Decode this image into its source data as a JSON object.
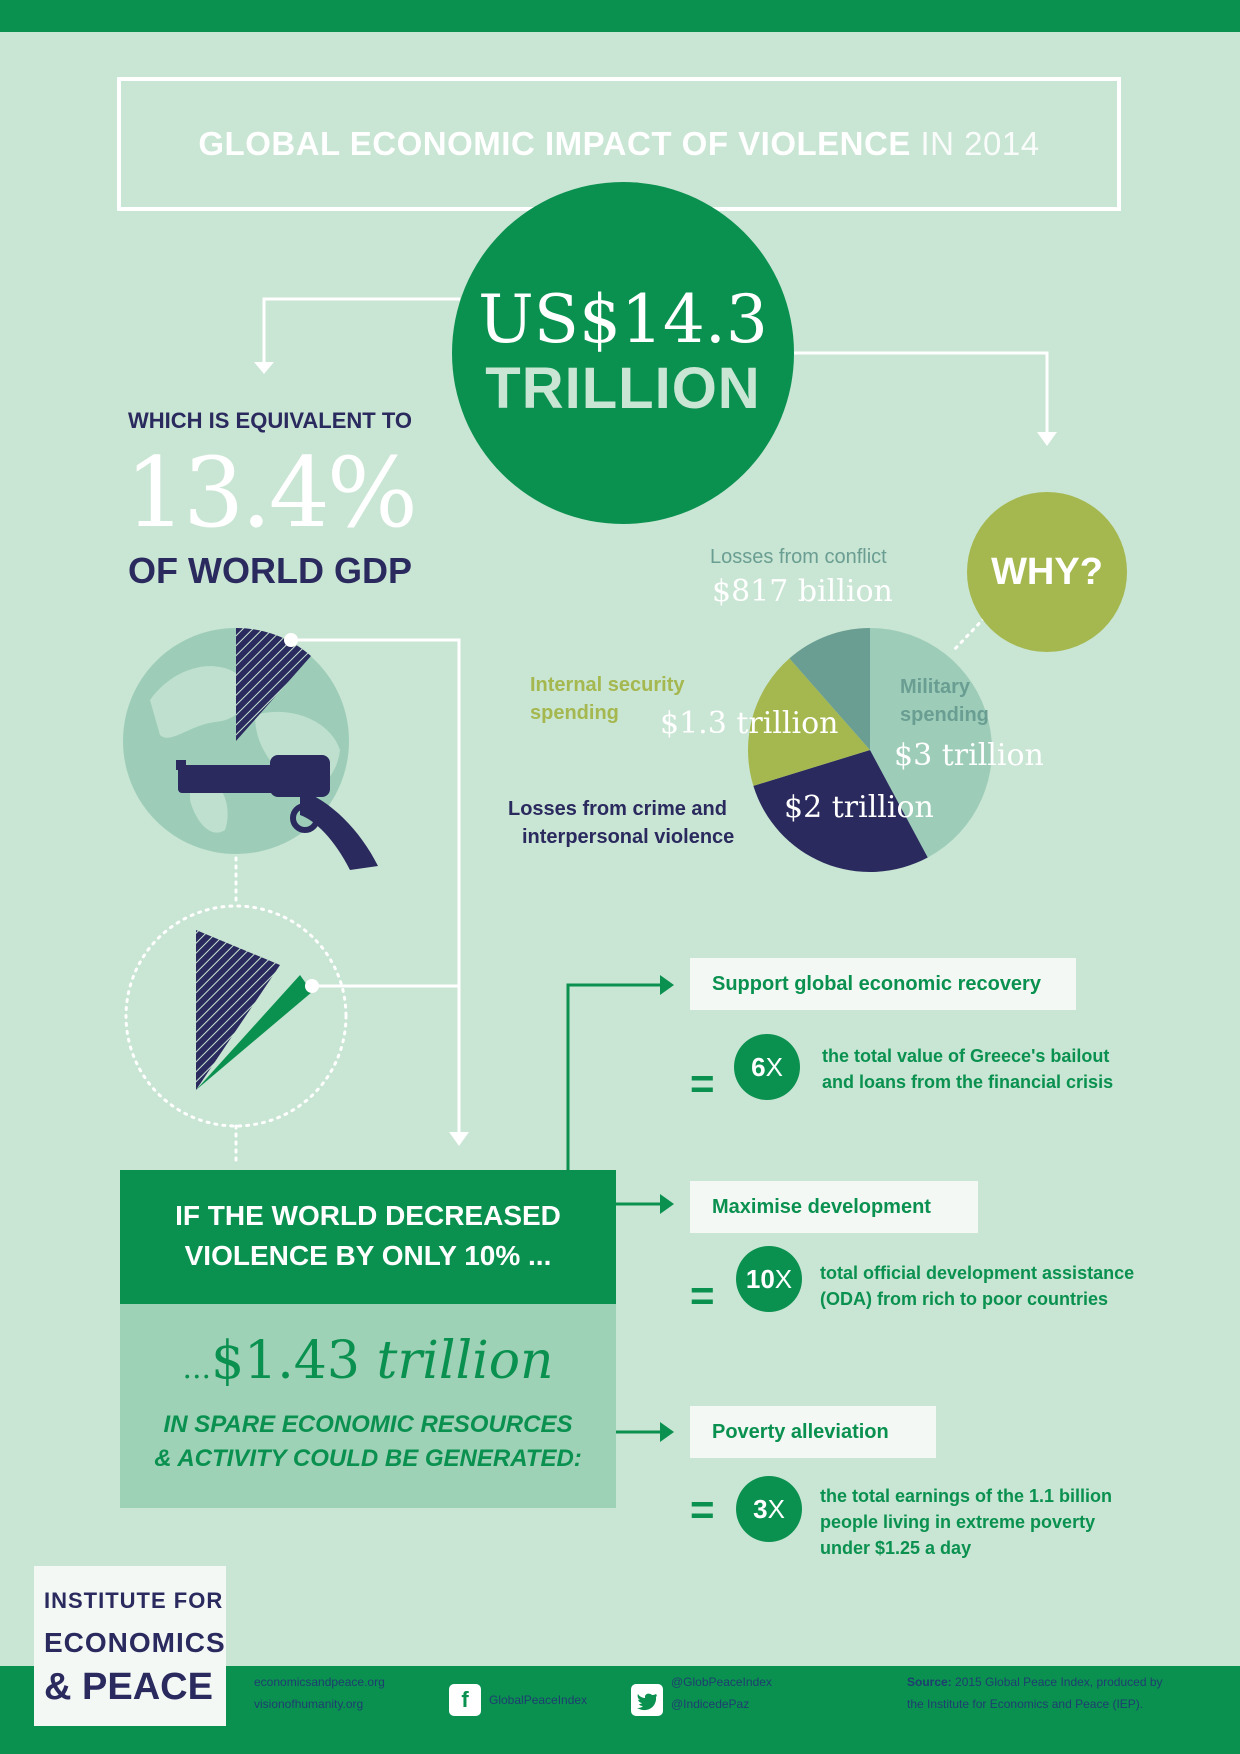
{
  "header": {
    "title_bold": "GLOBAL ECONOMIC IMPACT OF VIOLENCE",
    "title_light": "IN 2014"
  },
  "headline": {
    "amount": "US$14.3",
    "unit": "TRILLION"
  },
  "gdp_share": {
    "intro": "WHICH IS EQUIVALENT TO",
    "percent": "13.4%",
    "label": "OF WORLD GDP"
  },
  "why": {
    "label": "WHY?"
  },
  "chart_data": {
    "type": "pie",
    "slices": [
      {
        "label_line1": "Military",
        "label_line2": "spending",
        "value_text": "$3 trillion",
        "value": 3.0,
        "color": "#9dcdb8"
      },
      {
        "label_line1": "Losses from crime and",
        "label_line2": "interpersonal violence",
        "value_text": "$2 trillion",
        "value": 2.0,
        "color": "#2a2a5e"
      },
      {
        "label_line1": "Internal security",
        "label_line2": "spending",
        "value_text": "$1.3 trillion",
        "value": 1.3,
        "color": "#a5b84f"
      },
      {
        "label_line1": "Losses from conflict",
        "label_line2": "",
        "value_text": "$817 billion",
        "value": 0.817,
        "color": "#6a9e92"
      }
    ]
  },
  "scenario": {
    "decrease_line1": "IF THE WORLD DECREASED",
    "decrease_line2": "VIOLENCE BY ONLY 10% ...",
    "ellipsis": "...",
    "amount": "$1.43",
    "unit": "trillion",
    "spare_line1": "IN SPARE ECONOMIC RESOURCES",
    "spare_line2": "& ACTIVITY COULD BE GENERATED:"
  },
  "benefits": [
    {
      "title": "Support global economic recovery",
      "equals": "=",
      "multiplier": "6",
      "x": "X",
      "desc_line1": "the total value of Greece's bailout",
      "desc_line2": "and loans from the financial crisis",
      "desc_line3": ""
    },
    {
      "title": "Maximise development",
      "equals": "=",
      "multiplier": "10",
      "x": "X",
      "desc_line1": "total official development assistance",
      "desc_line2": "(ODA) from rich to poor countries",
      "desc_line3": ""
    },
    {
      "title": "Poverty alleviation",
      "equals": "=",
      "multiplier": "3",
      "x": "X",
      "desc_line1": "the total earnings of the 1.1 billion",
      "desc_line2": "people living in extreme poverty",
      "desc_line3": "under $1.25 a day"
    }
  ],
  "logo": {
    "line1": "INSTITUTE FOR",
    "line2": "ECONOMICS",
    "line3": "& PEACE"
  },
  "footer": {
    "site1": "economicsandpeace.org",
    "site2": "visionofhumanity.org",
    "facebook_glyph": "f",
    "facebook": "GlobalPeaceIndex",
    "twitter1": "@GlobPeaceIndex",
    "twitter2": "@IndicedePaz",
    "source_label": "Source:",
    "source_line1": "2015 Global Peace Index, produced by",
    "source_line2": "the Institute for Economics and Peace (IEP)."
  },
  "colors": {
    "background": "#c9e5d3",
    "primary_green": "#0a9150",
    "navy": "#2a2a5e",
    "olive": "#a5b84f"
  }
}
